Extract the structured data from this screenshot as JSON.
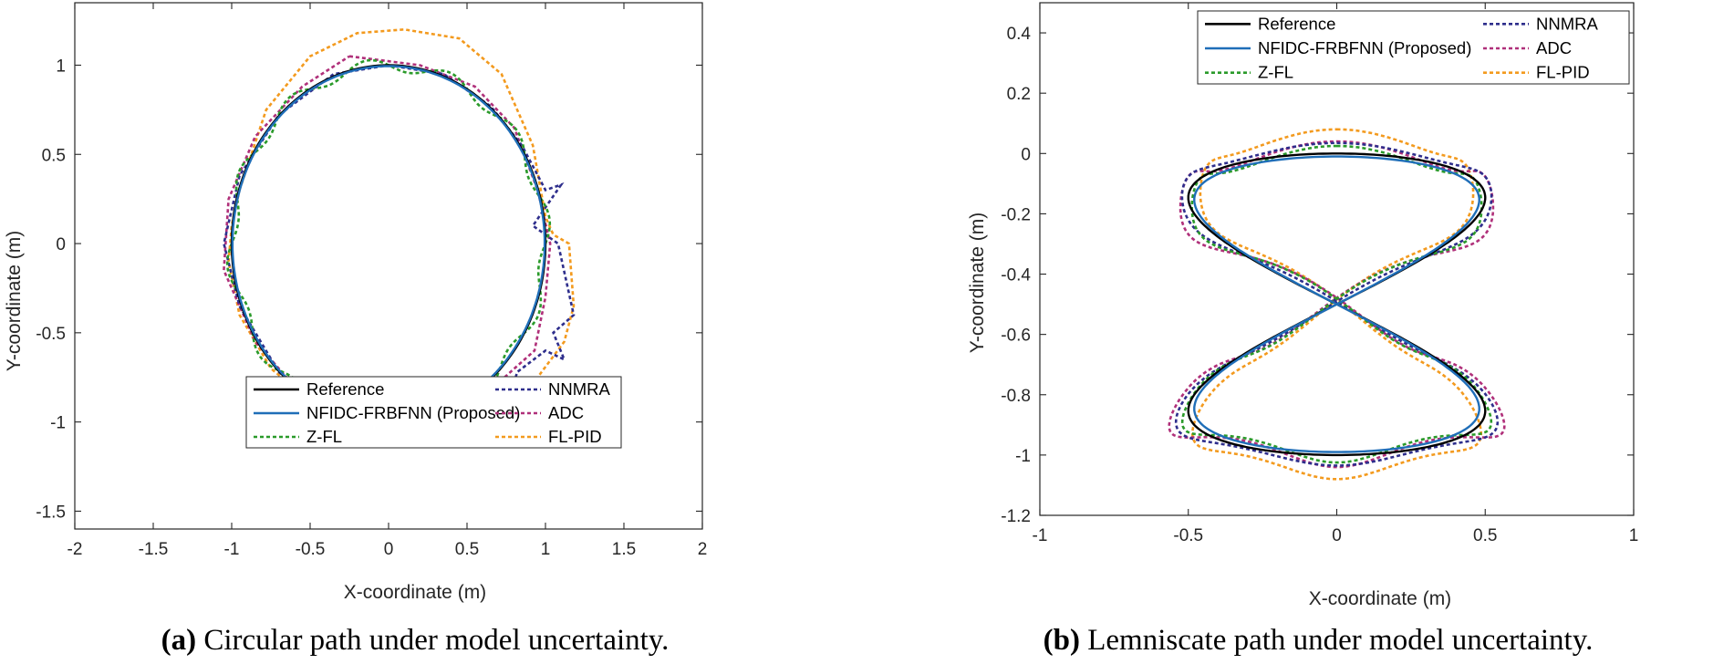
{
  "colors": {
    "Reference": "#000000",
    "NFIDC-FRBFNN (Proposed)": "#1f6eb8",
    "Z-FL": "#2a9a2a",
    "NNMRA": "#2e2e8c",
    "ADC": "#b0307a",
    "FL-PID": "#f39a1e"
  },
  "chart_data": [
    {
      "type": "line",
      "panel": "a",
      "caption_tag": "(a)",
      "caption_text": "Circular path under model uncertainty.",
      "xlabel": "X-coordinate (m)",
      "ylabel": "Y-coordinate (m)",
      "xlim": [
        -2,
        2
      ],
      "ylim": [
        -1.6,
        1.35
      ],
      "xticks": [
        -2,
        -1.5,
        -1,
        -0.5,
        0,
        0.5,
        1,
        1.5,
        2
      ],
      "yticks": [
        -1.5,
        -1,
        -0.5,
        0,
        0.5,
        1
      ],
      "xtick_labels": [
        "-2",
        "-1.5",
        "-1",
        "-0.5",
        "0",
        "0.5",
        "1",
        "1.5",
        "2"
      ],
      "ytick_labels": [
        "-1.5",
        "-1",
        "-0.5",
        "0",
        "0.5",
        "1"
      ],
      "legend_location": "bottom-right",
      "legend": [
        {
          "name": "Reference",
          "style": "solid"
        },
        {
          "name": "NFIDC-FRBFNN (Proposed)",
          "style": "solid"
        },
        {
          "name": "Z-FL",
          "style": "dotted"
        },
        {
          "name": "NNMRA",
          "style": "dotted"
        },
        {
          "name": "ADC",
          "style": "dotted"
        },
        {
          "name": "FL-PID",
          "style": "dotted"
        }
      ],
      "series": [
        {
          "name": "Reference",
          "shape": "circle",
          "cx": 0,
          "cy": 0,
          "r": 1
        },
        {
          "name": "NFIDC-FRBFNN (Proposed)",
          "shape": "circle",
          "cx": 0,
          "cy": 0,
          "r": 0.995
        },
        {
          "name": "Z-FL",
          "shape": "wavy-circle",
          "cx": 0,
          "cy": 0,
          "r": 1,
          "lobes": 12,
          "amp": 0.035
        },
        {
          "name": "NNMRA",
          "x": [
            0.0,
            0.35,
            0.65,
            0.85,
            1.0,
            1.1,
            0.92,
            1.08,
            1.18,
            1.05,
            1.12,
            1.0,
            0.82,
            0.8,
            0.7,
            0.5,
            0.2,
            0.0,
            -0.35,
            -0.7,
            -0.95,
            -1.05,
            -0.95,
            -0.7,
            -0.35,
            0.0
          ],
          "y": [
            1.0,
            0.95,
            0.77,
            0.55,
            0.3,
            0.33,
            0.1,
            0.0,
            -0.4,
            -0.5,
            -0.65,
            -0.6,
            -0.72,
            -0.78,
            -0.82,
            -0.9,
            -1.05,
            -1.0,
            -0.95,
            -0.72,
            -0.35,
            0.0,
            0.38,
            0.72,
            0.95,
            1.0
          ]
        },
        {
          "name": "ADC",
          "x": [
            -0.25,
            0.2,
            0.55,
            0.8,
            0.95,
            1.03,
            1.0,
            0.93,
            0.7,
            0.4,
            0.1,
            -0.2,
            -0.55,
            -0.85,
            -1.05,
            -1.02,
            -0.85,
            -0.55,
            -0.25
          ],
          "y": [
            1.05,
            1.0,
            0.88,
            0.65,
            0.3,
            0.0,
            -0.3,
            -0.6,
            -0.78,
            -0.95,
            -1.05,
            -1.0,
            -0.85,
            -0.55,
            -0.15,
            0.25,
            0.6,
            0.88,
            1.05
          ]
        },
        {
          "name": "FL-PID",
          "x": [
            -0.95,
            -0.78,
            -0.5,
            -0.2,
            0.1,
            0.45,
            0.72,
            0.92,
            1.0,
            1.05,
            1.15,
            1.18,
            1.12,
            0.95,
            0.7,
            0.4,
            0.1,
            -0.2,
            -0.5,
            -0.75,
            -0.95,
            -1.02,
            -1.0,
            -0.95
          ],
          "y": [
            0.3,
            0.75,
            1.05,
            1.18,
            1.2,
            1.15,
            0.95,
            0.55,
            0.15,
            0.05,
            0.0,
            -0.35,
            -0.55,
            -0.75,
            -0.92,
            -1.04,
            -1.05,
            -0.98,
            -0.88,
            -0.7,
            -0.4,
            -0.1,
            0.1,
            0.3
          ]
        }
      ]
    },
    {
      "type": "line",
      "panel": "b",
      "caption_tag": "(b)",
      "caption_text": "Lemniscate path under model uncertainty.",
      "xlabel": "X-coordinate (m)",
      "ylabel": "Y-coordinate (m)",
      "xlim": [
        -1,
        1
      ],
      "ylim": [
        -1.2,
        0.5
      ],
      "xticks": [
        -1,
        -0.5,
        0,
        0.5,
        1
      ],
      "yticks": [
        -1.2,
        -1,
        -0.8,
        -0.6,
        -0.4,
        -0.2,
        0,
        0.2,
        0.4
      ],
      "xtick_labels": [
        "-1",
        "-0.5",
        "0",
        "0.5",
        "1"
      ],
      "ytick_labels": [
        "-1.2",
        "-1",
        "-0.8",
        "-0.6",
        "-0.4",
        "-0.2",
        "0",
        "0.2",
        "0.4"
      ],
      "legend_location": "top-right",
      "legend": [
        {
          "name": "Reference",
          "style": "solid"
        },
        {
          "name": "NFIDC-FRBFNN (Proposed)",
          "style": "solid"
        },
        {
          "name": "Z-FL",
          "style": "dotted"
        },
        {
          "name": "NNMRA",
          "style": "dotted"
        },
        {
          "name": "ADC",
          "style": "dotted"
        },
        {
          "name": "FL-PID",
          "style": "dotted"
        }
      ],
      "series": [
        {
          "name": "Reference",
          "shape": "figure-eight",
          "cx": 0,
          "cy": -0.5,
          "a": 0.5,
          "b": 0.5,
          "scale": 1.0
        },
        {
          "name": "NFIDC-FRBFNN (Proposed)",
          "shape": "figure-eight",
          "cx": 0,
          "cy": -0.5,
          "a": 0.48,
          "b": 0.49,
          "scale": 1.0
        },
        {
          "name": "Z-FL",
          "shape": "figure-eight",
          "cx": 0,
          "cy": -0.5,
          "a": 0.5,
          "b": 0.5,
          "scale": 1.0,
          "wobble": 0.025
        },
        {
          "name": "NNMRA",
          "shape": "figure-eight",
          "cx": 0,
          "cy": -0.5,
          "a": 0.53,
          "b": 0.52,
          "scale": 1.0,
          "wobble": 0.015
        },
        {
          "name": "ADC",
          "shape": "figure-eight",
          "cx": 0,
          "cy": -0.5,
          "a": 0.54,
          "b": 0.51,
          "scale": 1.0,
          "wobble": 0.03
        },
        {
          "name": "FL-PID",
          "shape": "figure-eight",
          "cx": 0,
          "cy": -0.5,
          "a": 0.47,
          "b": 0.56,
          "scale": 1.0,
          "wobble": 0.02
        }
      ]
    }
  ]
}
